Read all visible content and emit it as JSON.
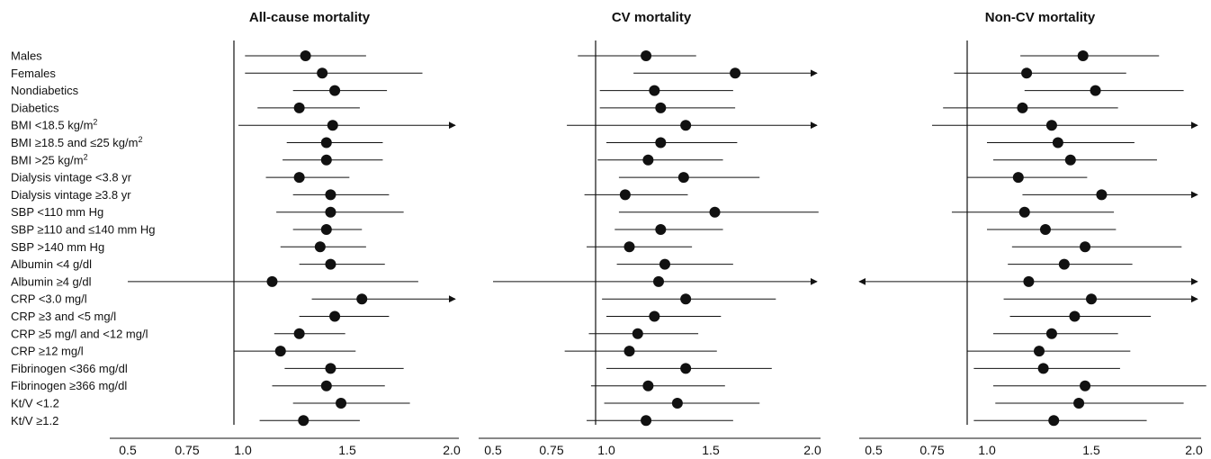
{
  "row_labels": [
    {
      "text": "Males"
    },
    {
      "text": "Females"
    },
    {
      "text": "Nondiabetics"
    },
    {
      "text": "Diabetics"
    },
    {
      "text": "BMI <18.5 kg/m",
      "sup": "2"
    },
    {
      "text": "BMI ≥18.5 and ≤25 kg/m",
      "sup": "2"
    },
    {
      "text": "BMI >25 kg/m",
      "sup": "2"
    },
    {
      "text": "Dialysis vintage <3.8 yr"
    },
    {
      "text": "Dialysis vintage ≥3.8 yr"
    },
    {
      "text": "SBP <110 mm Hg"
    },
    {
      "text": "SBP ≥110 and ≤140 mm Hg"
    },
    {
      "text": "SBP >140 mm Hg"
    },
    {
      "text": "Albumin <4 g/dl"
    },
    {
      "text": "Albumin ≥4 g/dl"
    },
    {
      "text": "CRP <3.0 mg/l"
    },
    {
      "text": "CRP ≥3 and <5 mg/l"
    },
    {
      "text": "CRP ≥5 mg/l and <12 mg/l"
    },
    {
      "text": "CRP ≥12 mg/l"
    },
    {
      "text": "Fibrinogen <366 mg/dl"
    },
    {
      "text": "Fibrinogen ≥366 mg/dl"
    },
    {
      "text": "Kt/V <1.2"
    },
    {
      "text": "Kt/V ≥1.2"
    }
  ],
  "chart_data": [
    {
      "type": "forest",
      "title": "All-cause mortality",
      "x_ticks": [
        0.5,
        0.75,
        1.0,
        1.5,
        2.0
      ],
      "x_tick_labels": [
        "0.5",
        "0.75",
        "1.0",
        "1.5",
        "2.0"
      ],
      "reference_line": 1.0,
      "points": [
        {
          "est": 1.3,
          "lo": 1.01,
          "hi": 1.59
        },
        {
          "est": 1.38,
          "lo": 1.01,
          "hi": 1.86
        },
        {
          "est": 1.44,
          "lo": 1.24,
          "hi": 1.69
        },
        {
          "est": 1.27,
          "lo": 1.07,
          "hi": 1.56
        },
        {
          "est": 1.43,
          "lo": 0.98,
          "hi": 2.0,
          "arrow_right": true
        },
        {
          "est": 1.4,
          "lo": 1.21,
          "hi": 1.67
        },
        {
          "est": 1.4,
          "lo": 1.19,
          "hi": 1.67
        },
        {
          "est": 1.27,
          "lo": 1.11,
          "hi": 1.51
        },
        {
          "est": 1.42,
          "lo": 1.24,
          "hi": 1.7
        },
        {
          "est": 1.42,
          "lo": 1.16,
          "hi": 1.77
        },
        {
          "est": 1.4,
          "lo": 1.24,
          "hi": 1.57
        },
        {
          "est": 1.37,
          "lo": 1.18,
          "hi": 1.59
        },
        {
          "est": 1.42,
          "lo": 1.27,
          "hi": 1.68
        },
        {
          "est": 1.14,
          "lo": 0.5,
          "hi": 1.84,
          "arrow_left": false
        },
        {
          "est": 1.57,
          "lo": 1.33,
          "hi": 2.0,
          "arrow_right": true
        },
        {
          "est": 1.44,
          "lo": 1.27,
          "hi": 1.7
        },
        {
          "est": 1.27,
          "lo": 1.15,
          "hi": 1.49
        },
        {
          "est": 1.18,
          "lo": 0.96,
          "hi": 1.54
        },
        {
          "est": 1.42,
          "lo": 1.2,
          "hi": 1.77
        },
        {
          "est": 1.4,
          "lo": 1.14,
          "hi": 1.68
        },
        {
          "est": 1.47,
          "lo": 1.24,
          "hi": 1.8
        },
        {
          "est": 1.29,
          "lo": 1.08,
          "hi": 1.56
        }
      ]
    },
    {
      "type": "forest",
      "title": "CV mortality",
      "x_ticks": [
        0.5,
        0.75,
        1.0,
        1.5,
        2.0
      ],
      "x_tick_labels": [
        "0.5",
        "0.75",
        "1.0",
        "1.5",
        "2.0"
      ],
      "reference_line": 1.0,
      "points": [
        {
          "est": 1.19,
          "lo": 0.87,
          "hi": 1.43
        },
        {
          "est": 1.62,
          "lo": 1.13,
          "hi": 2.0,
          "arrow_right": true
        },
        {
          "est": 1.23,
          "lo": 0.97,
          "hi": 1.61
        },
        {
          "est": 1.26,
          "lo": 0.97,
          "hi": 1.62
        },
        {
          "est": 1.38,
          "lo": 0.82,
          "hi": 2.0,
          "arrow_right": true
        },
        {
          "est": 1.26,
          "lo": 1.0,
          "hi": 1.63
        },
        {
          "est": 1.2,
          "lo": 0.96,
          "hi": 1.56
        },
        {
          "est": 1.37,
          "lo": 1.06,
          "hi": 1.74
        },
        {
          "est": 1.09,
          "lo": 0.9,
          "hi": 1.39
        },
        {
          "est": 1.52,
          "lo": 1.06,
          "hi": 2.03
        },
        {
          "est": 1.26,
          "lo": 1.04,
          "hi": 1.56
        },
        {
          "est": 1.11,
          "lo": 0.91,
          "hi": 1.41
        },
        {
          "est": 1.28,
          "lo": 1.05,
          "hi": 1.61
        },
        {
          "est": 1.25,
          "lo": 0.5,
          "hi": 2.0,
          "arrow_right": true
        },
        {
          "est": 1.38,
          "lo": 0.98,
          "hi": 1.82
        },
        {
          "est": 1.23,
          "lo": 1.0,
          "hi": 1.55
        },
        {
          "est": 1.15,
          "lo": 0.92,
          "hi": 1.44
        },
        {
          "est": 1.11,
          "lo": 0.81,
          "hi": 1.53
        },
        {
          "est": 1.38,
          "lo": 1.0,
          "hi": 1.8
        },
        {
          "est": 1.2,
          "lo": 0.93,
          "hi": 1.57
        },
        {
          "est": 1.34,
          "lo": 0.99,
          "hi": 1.74
        },
        {
          "est": 1.19,
          "lo": 0.91,
          "hi": 1.61
        }
      ]
    },
    {
      "type": "forest",
      "title": "Non-CV mortality",
      "x_ticks": [
        0.5,
        0.75,
        1.0,
        1.5,
        2.0
      ],
      "x_tick_labels": [
        "0.5",
        "0.75",
        "1.0",
        "1.5",
        "2.0"
      ],
      "reference_line": 1.0,
      "points": [
        {
          "est": 1.46,
          "lo": 1.16,
          "hi": 1.83
        },
        {
          "est": 1.19,
          "lo": 0.85,
          "hi": 1.67
        },
        {
          "est": 1.52,
          "lo": 1.18,
          "hi": 1.95
        },
        {
          "est": 1.17,
          "lo": 0.8,
          "hi": 1.63
        },
        {
          "est": 1.31,
          "lo": 0.75,
          "hi": 2.0,
          "arrow_right": true
        },
        {
          "est": 1.34,
          "lo": 1.0,
          "hi": 1.71
        },
        {
          "est": 1.4,
          "lo": 1.03,
          "hi": 1.82
        },
        {
          "est": 1.15,
          "lo": 0.91,
          "hi": 1.48
        },
        {
          "est": 1.55,
          "lo": 1.17,
          "hi": 2.0,
          "arrow_right": true
        },
        {
          "est": 1.18,
          "lo": 0.84,
          "hi": 1.61
        },
        {
          "est": 1.28,
          "lo": 1.0,
          "hi": 1.62
        },
        {
          "est": 1.47,
          "lo": 1.12,
          "hi": 1.94
        },
        {
          "est": 1.37,
          "lo": 1.1,
          "hi": 1.7
        },
        {
          "est": 1.2,
          "lo": 0.5,
          "hi": 2.0,
          "arrow_left": true,
          "arrow_right": true
        },
        {
          "est": 1.5,
          "lo": 1.08,
          "hi": 2.0,
          "arrow_right": true
        },
        {
          "est": 1.42,
          "lo": 1.11,
          "hi": 1.79
        },
        {
          "est": 1.31,
          "lo": 1.03,
          "hi": 1.63
        },
        {
          "est": 1.25,
          "lo": 0.91,
          "hi": 1.69
        },
        {
          "est": 1.27,
          "lo": 0.94,
          "hi": 1.64
        },
        {
          "est": 1.47,
          "lo": 1.03,
          "hi": 2.06
        },
        {
          "est": 1.44,
          "lo": 1.04,
          "hi": 1.95
        },
        {
          "est": 1.32,
          "lo": 0.94,
          "hi": 1.77
        }
      ]
    }
  ]
}
